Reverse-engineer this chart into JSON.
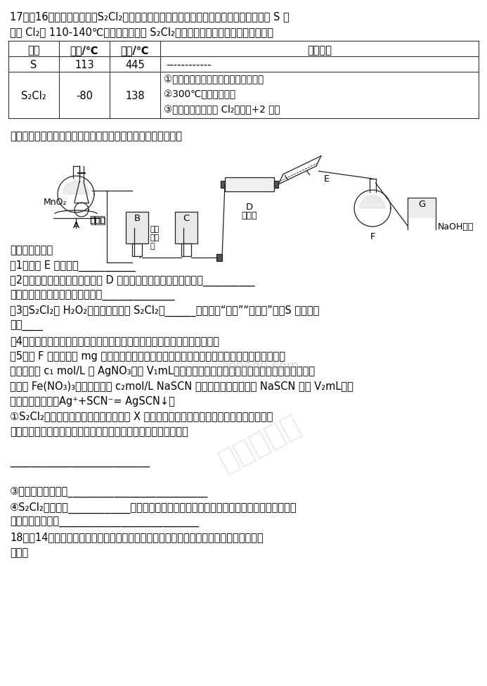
{
  "line1": "17．（16分）二氯化二硫（S₂Cl₂）在工业上常用作橡胶的低温硫化剂。某小组利用单质 S 与",
  "line2": "少量 Cl₂在 110-140℃条件下反应合成 S₂Cl₂，查阅有关资料后，得到如下信息：",
  "th0": "物质",
  "th1": "燔点/℃",
  "th2": "沸点/℃",
  "th3": "化学性质",
  "r1c0": "S",
  "r1c1": "113",
  "r1c2": "445",
  "r1c3": "------------",
  "r2c0": "S₂Cl₂",
  "r2c1": "-80",
  "r2c2": "138",
  "r2c3a": "①常温下，为黄红色液体，能与水反应",
  "r2c3b": "②300℃以上完全分解",
  "r2c3c": "③在加热条件下会被 Cl₂氧化成+2 价硫",
  "app_desc": "设计如图所示实验装置（部分夹持装置、加热装置均已略去）：",
  "q0": "回答下列问题：",
  "q1": "（1）仪器 E 的名称为___________",
  "q2": "（2）实验过程中，需要控制装置 D 的温度，温度不宜过高的原因是__________",
  "q3": "判断反应已进行完全的实验现象是______________",
  "q4": "（3）S₂Cl₂与 H₂O₂结构相似，推测 S₂Cl₂为______分子（填“极性”“非极性”），S 的杂化类",
  "q5": "型为____",
  "q6": "（4）有同学认为该装置存在一定的缺陷，指出存在的问题并提出改进方案：",
  "q7": "（5）取 F 中黄色液体 mg 于锥形瓶，加水至反应完全（假设杂质均不与水反应），向所得液中",
  "q8": "加入过量的 c₁ mol/L 的 AgNO₃溶液 V₁mL，再向锥形瓶中加入硒基苯，将生成的沉淠覆盖，加",
  "q9": "入适量 Fe(NO₃)₃作指示剂，用 c₂mol/L NaSCN 溶液滴定至终点，消耗 NaSCN 溶液 V₂mL（滴",
  "q10": "定过程发生反应：Ag⁺+SCN⁻= AgSCN↓）",
  "q11": "①S₂Cl₂遇水反应，其产物中有一种气体 X 能使品红溶液褮色，加热后又恢复原色，且反应",
  "q12": "过程中只有一种元素化合价发生变化，写出该反应的化学方程式：",
  "q13": "",
  "q14": "___________________________",
  "q15": "",
  "q16": "③滴定终点的现象为___________________________",
  "q17": "④S₂Cl₂的纯度为____________（写出表达式），滴定过程中加入硒基苯将生成的沉淠覆盖，",
  "q18": "这样操作的目的是___________________________",
  "q19": "18．（14分）某研究小组拟以甲苯为原料合成医药盐酸氨溃索，合成过程如下图所示。请",
  "q20": "回答：",
  "bg": "#ffffff",
  "tc": "#000000",
  "lc": "#222222"
}
